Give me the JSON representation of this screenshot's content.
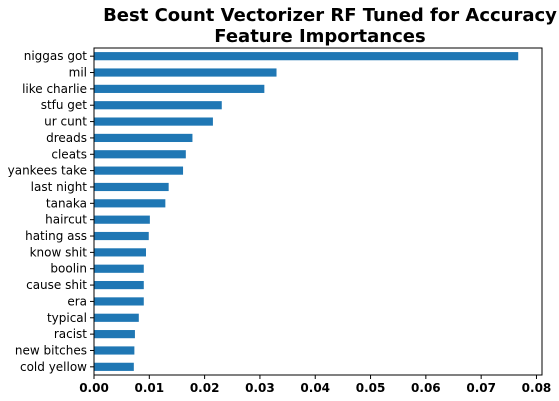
{
  "chart_data": {
    "type": "bar",
    "orientation": "horizontal",
    "title": "Best Count Vectorizer RF Tuned for Accuracy",
    "subtitle": "Feature Importances",
    "xlabel": "",
    "ylabel": "",
    "xlim": [
      0,
      0.081
    ],
    "xticks": [
      0.0,
      0.01,
      0.02,
      0.03,
      0.04,
      0.05,
      0.06,
      0.07,
      0.08
    ],
    "xtick_labels": [
      "0.00",
      "0.01",
      "0.02",
      "0.03",
      "0.04",
      "0.05",
      "0.06",
      "0.07",
      "0.08"
    ],
    "grid": false,
    "bar_color": "#1f77b4",
    "categories": [
      "niggas got",
      "mil",
      "like charlie",
      "stfu get",
      "ur cunt",
      "dreads",
      "cleats",
      "yankees take",
      "last night",
      "tanaka",
      "haircut",
      "hating ass",
      "know shit",
      "boolin",
      "cause shit",
      "era",
      "typical",
      "racist",
      "new bitches",
      "cold yellow"
    ],
    "values": [
      0.0767,
      0.033,
      0.0308,
      0.0231,
      0.0215,
      0.0178,
      0.0166,
      0.0161,
      0.0135,
      0.0129,
      0.0101,
      0.0099,
      0.0094,
      0.009,
      0.009,
      0.009,
      0.0081,
      0.0074,
      0.0073,
      0.0072
    ]
  }
}
